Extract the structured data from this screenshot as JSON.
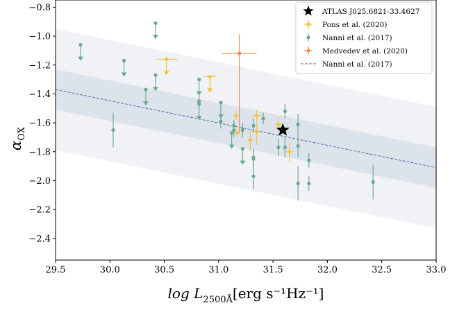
{
  "chart_data": {
    "type": "scatter",
    "title": "",
    "xlabel": {
      "main": "log L",
      "sub": "2500Å",
      "units": "[erg s⁻¹Hz⁻¹]"
    },
    "ylabel": {
      "main": "α",
      "sub": "OX"
    },
    "xlim": [
      29.5,
      33.0
    ],
    "ylim": [
      -2.55,
      -0.75
    ],
    "xticks": [
      29.5,
      30.0,
      30.5,
      31.0,
      31.5,
      32.0,
      32.5,
      33.0
    ],
    "xtick_labels": [
      "29.5",
      "30.0",
      "30.5",
      "31.0",
      "31.5",
      "32.0",
      "32.5",
      "33.0"
    ],
    "yticks": [
      -0.8,
      -1.0,
      -1.2,
      -1.4,
      -1.6,
      -1.8,
      -2.0,
      -2.2,
      -2.4
    ],
    "ytick_labels": [
      "−0.8",
      "−1.0",
      "−1.2",
      "−1.4",
      "−1.6",
      "−1.8",
      "−2.0",
      "−2.2",
      "−2.4"
    ],
    "grid": false,
    "legend_position": "top-right",
    "colors": {
      "atlas": "#000000",
      "pons": "#f5c242",
      "nanni": "#6aab8e",
      "medvedev": "#f08a5d",
      "relation_line": "#4a6fa5",
      "band_inner": "#dde3eb",
      "band_outer": "#f0f2f5"
    },
    "relation": {
      "name": "Nanni et al. (2017)",
      "x": [
        29.5,
        33.0
      ],
      "y": [
        -1.37,
        -1.91
      ],
      "band_inner_halfwidth": 0.14,
      "band_outer_halfwidth": 0.42
    },
    "series": [
      {
        "name": "ATLAS J025.6821-33.4627",
        "marker": "star",
        "points": [
          {
            "x": 31.59,
            "y": -1.65
          }
        ]
      },
      {
        "name": "Pons et al. (2020)",
        "marker": "circle",
        "points": [
          {
            "x": 31.16,
            "y": -1.55,
            "yerr": 0.03,
            "xerr": 0.02
          },
          {
            "x": 31.17,
            "y": -1.67,
            "yerr": 0.03,
            "xerr": 0.02
          },
          {
            "x": 31.29,
            "y": -1.72,
            "yerr": 0.07,
            "xerr": 0.02
          },
          {
            "x": 31.35,
            "y": -1.55,
            "yerr": 0.04,
            "xerr": 0.04
          },
          {
            "x": 31.35,
            "y": -1.66,
            "yerr": 0.09,
            "xerr": 0.03
          },
          {
            "x": 31.55,
            "y": -1.61,
            "yerr": 0.05,
            "xerr": 0.03
          },
          {
            "x": 31.65,
            "y": -1.8,
            "yerr": 0.07,
            "xerr": 0.04
          }
        ],
        "upper_limits": [
          {
            "x": 30.52,
            "y": -1.16,
            "xerr": 0.1
          },
          {
            "x": 30.92,
            "y": -1.28,
            "xerr": 0.06
          }
        ]
      },
      {
        "name": "Nanni et al. (2017)",
        "marker": "circle",
        "points": [
          {
            "x": 30.03,
            "y": -1.65,
            "yerr": 0.12
          },
          {
            "x": 30.82,
            "y": -1.45,
            "yerr": 0.05
          },
          {
            "x": 31.02,
            "y": -1.59,
            "yerr": 0.05
          },
          {
            "x": 31.14,
            "y": -1.62,
            "yerr": 0.04
          },
          {
            "x": 31.14,
            "y": -1.65,
            "yerr": 0.05
          },
          {
            "x": 31.22,
            "y": -1.65,
            "yerr": 0.05
          },
          {
            "x": 31.32,
            "y": -1.62,
            "yerr": 0.05
          },
          {
            "x": 31.32,
            "y": -1.84,
            "yerr": 0.06
          },
          {
            "x": 31.32,
            "y": -1.85,
            "yerr": 0.07
          },
          {
            "x": 31.32,
            "y": -1.97,
            "yerr": 0.09
          },
          {
            "x": 31.41,
            "y": -1.57,
            "yerr": 0.04
          },
          {
            "x": 31.55,
            "y": -1.77,
            "yerr": 0.06
          },
          {
            "x": 31.61,
            "y": -1.52,
            "yerr": 0.05
          },
          {
            "x": 31.61,
            "y": -1.77,
            "yerr": 0.07
          },
          {
            "x": 31.73,
            "y": -1.61,
            "yerr": 0.07
          },
          {
            "x": 31.73,
            "y": -1.76,
            "yerr": 0.08
          },
          {
            "x": 31.73,
            "y": -2.02,
            "yerr": 0.12
          },
          {
            "x": 31.83,
            "y": -1.86,
            "yerr": 0.05
          },
          {
            "x": 31.83,
            "y": -2.02,
            "yerr": 0.05
          },
          {
            "x": 32.42,
            "y": -2.01,
            "yerr": 0.12
          }
        ],
        "upper_limits": [
          {
            "x": 29.73,
            "y": -1.06
          },
          {
            "x": 30.13,
            "y": -1.17
          },
          {
            "x": 30.33,
            "y": -1.37
          },
          {
            "x": 30.42,
            "y": -0.91
          },
          {
            "x": 30.42,
            "y": -1.27
          },
          {
            "x": 30.82,
            "y": -1.3
          },
          {
            "x": 30.82,
            "y": -1.47
          },
          {
            "x": 31.02,
            "y": -1.46
          },
          {
            "x": 31.12,
            "y": -1.67
          },
          {
            "x": 31.22,
            "y": -1.78
          }
        ]
      },
      {
        "name": "Medvedev et al. (2020)",
        "marker": "circle",
        "points": [
          {
            "x": 31.19,
            "y": -1.12,
            "yerr_up": 0.13,
            "yerr_down": 0.55,
            "xerr": 0.16
          }
        ]
      }
    ],
    "legend": [
      "ATLAS J025.6821-33.4627",
      "Pons et al. (2020)",
      "Nanni et al. (2017)",
      "Medvedev et al. (2020)",
      "Nanni et al. (2017)"
    ]
  }
}
